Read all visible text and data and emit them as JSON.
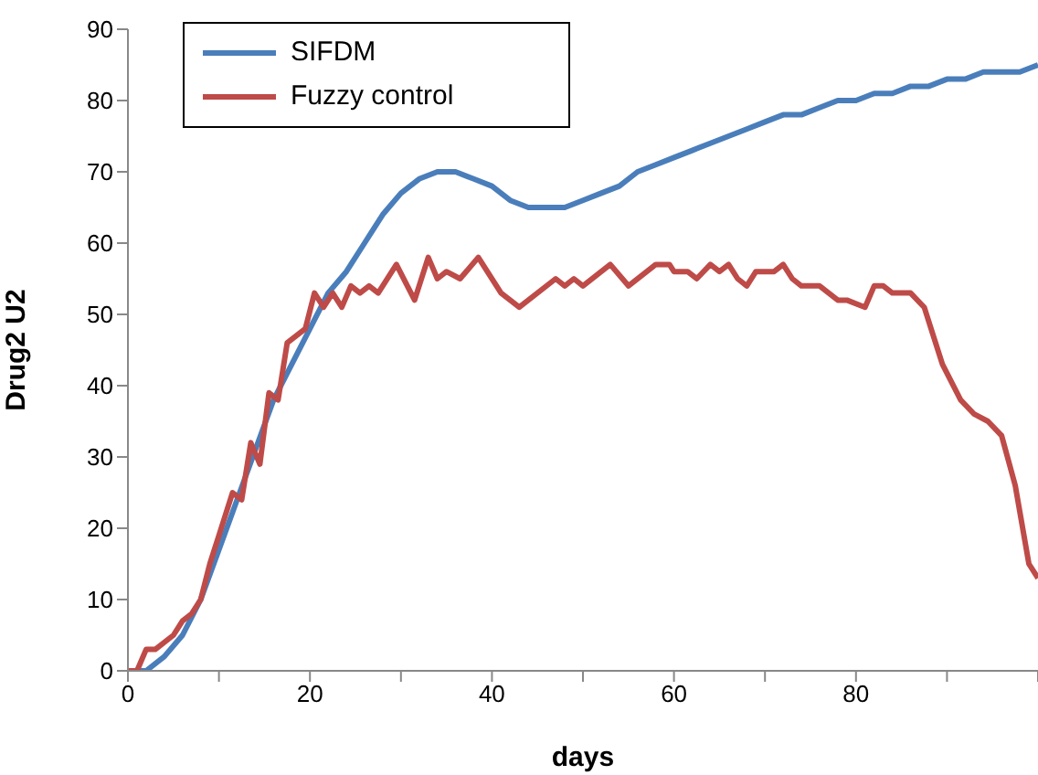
{
  "chart_data": {
    "type": "line",
    "xlabel": "days",
    "ylabel": "Drug2  U2",
    "xlim": [
      0,
      100
    ],
    "xticks": [
      0,
      {
        "value": 10,
        "label": null
      },
      20,
      {
        "value": 30,
        "label": null
      },
      40,
      {
        "value": 50,
        "label": null
      },
      60,
      {
        "value": 70,
        "label": null
      },
      80,
      {
        "value": 90,
        "label": null
      },
      {
        "value": 100,
        "label": null
      }
    ],
    "ylim": [
      0,
      90
    ],
    "yticks": [
      0,
      10,
      20,
      30,
      40,
      50,
      60,
      70,
      80,
      90
    ],
    "grid": false,
    "legend": "top left",
    "marker": "none",
    "line_style": "solid",
    "series": [
      {
        "name": "SIFDM",
        "color": "#4a7ebb",
        "x": [
          0,
          2,
          4,
          6,
          8,
          10,
          12,
          14,
          16,
          18,
          20,
          22,
          24,
          26,
          28,
          30,
          32,
          34,
          36,
          38,
          40,
          42,
          44,
          46,
          48,
          50,
          52,
          54,
          56,
          58,
          60,
          62,
          64,
          66,
          68,
          70,
          72,
          74,
          76,
          78,
          80,
          82,
          84,
          86,
          88,
          90,
          92,
          94,
          96,
          98,
          100
        ],
        "values": [
          0,
          0,
          2,
          5,
          10,
          17,
          24,
          31,
          38,
          43,
          48,
          53,
          56,
          60,
          64,
          67,
          69,
          70,
          70,
          69,
          68,
          66,
          65,
          65,
          65,
          66,
          67,
          68,
          70,
          71,
          72,
          73,
          74,
          75,
          76,
          77,
          78,
          78,
          79,
          80,
          80,
          81,
          81,
          82,
          82,
          83,
          83,
          84,
          84,
          84,
          85
        ]
      },
      {
        "name": "Fuzzy control",
        "color": "#be4b48",
        "x": [
          0,
          1,
          2,
          3,
          5,
          6,
          7,
          8,
          9,
          10,
          11.5,
          12.5,
          13.5,
          14.5,
          15.5,
          16.5,
          17.5,
          18.5,
          19.5,
          20.5,
          21.5,
          22.5,
          23.5,
          24.5,
          25.5,
          26.5,
          27.5,
          29.5,
          31.5,
          33,
          34,
          35,
          36.5,
          38.5,
          41,
          43,
          47,
          48,
          49,
          50,
          53,
          55,
          58,
          59.5,
          60,
          61.5,
          62.5,
          64,
          65,
          66,
          67,
          68,
          69,
          71,
          72,
          73,
          74,
          76,
          77,
          78,
          79,
          81,
          82,
          83,
          84,
          86,
          87.5,
          89.5,
          91.5,
          93,
          94.5,
          96,
          97.5,
          99,
          100
        ],
        "values": [
          0,
          0,
          3,
          3,
          5,
          7,
          8,
          10,
          15,
          19,
          25,
          24,
          32,
          29,
          39,
          38,
          46,
          47,
          48,
          53,
          51,
          53,
          51,
          54,
          53,
          54,
          53,
          57,
          52,
          58,
          55,
          56,
          55,
          58,
          53,
          51,
          55,
          54,
          55,
          54,
          57,
          54,
          57,
          57,
          56,
          56,
          55,
          57,
          56,
          57,
          55,
          54,
          56,
          56,
          57,
          55,
          54,
          54,
          53,
          52,
          52,
          51,
          54,
          54,
          53,
          53,
          51,
          43,
          38,
          36,
          35,
          33,
          26,
          15,
          13
        ]
      }
    ]
  }
}
